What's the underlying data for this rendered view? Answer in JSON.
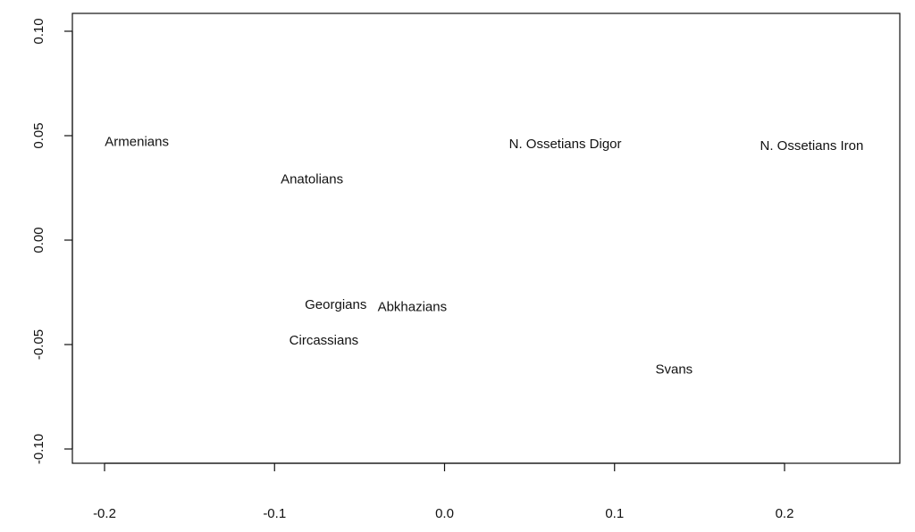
{
  "chart_data": {
    "type": "scatter",
    "title": "",
    "xlabel": "",
    "ylabel": "",
    "xlim": [
      -0.2,
      0.25
    ],
    "ylim": [
      -0.105,
      0.1
    ],
    "x_ticks": [
      -0.2,
      -0.1,
      0.0,
      0.1,
      0.2
    ],
    "x_tick_labels": [
      "-0.2",
      "-0.1",
      "0.0",
      "0.1",
      "0.2"
    ],
    "y_ticks": [
      0.1,
      0.05,
      0.0,
      -0.05,
      -0.1
    ],
    "y_tick_labels": [
      "0.10",
      "0.05",
      "0.00",
      "-0.05",
      "-0.10"
    ],
    "grid": false,
    "points": [
      {
        "label": "Armenians",
        "x": -0.181,
        "y": 0.047
      },
      {
        "label": "Anatolians",
        "x": -0.078,
        "y": 0.029
      },
      {
        "label": "N. Ossetians Digor",
        "x": 0.071,
        "y": 0.046
      },
      {
        "label": "N. Ossetians Iron",
        "x": 0.216,
        "y": 0.045
      },
      {
        "label": "Georgians",
        "x": -0.064,
        "y": -0.031
      },
      {
        "label": "Abkhazians",
        "x": -0.019,
        "y": -0.032
      },
      {
        "label": "Circassians",
        "x": -0.071,
        "y": -0.048
      },
      {
        "label": "Svans",
        "x": 0.135,
        "y": -0.062
      }
    ]
  }
}
